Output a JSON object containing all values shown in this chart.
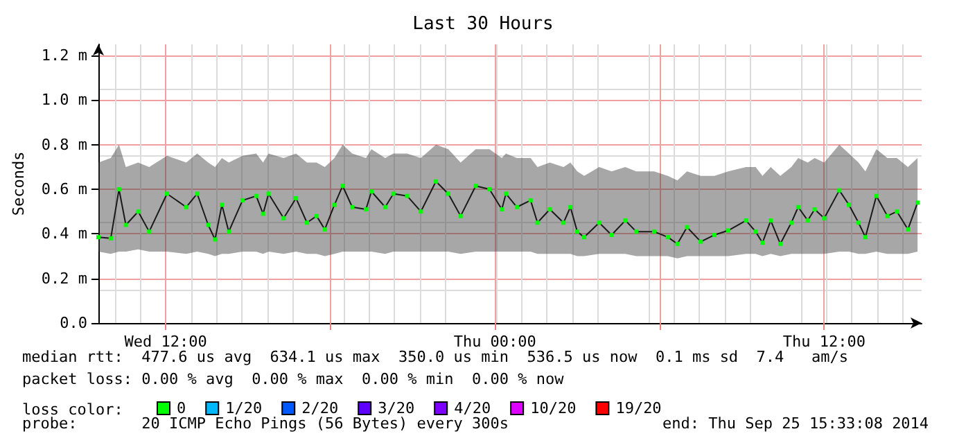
{
  "chart_data": {
    "type": "line",
    "title": "Last 30 Hours",
    "ylabel": "Seconds",
    "legend_title": "loss color:",
    "x": [
      "2014-09-24T09:33",
      "2014-09-24T10:00",
      "2014-09-24T10:18",
      "2014-09-24T10:33",
      "2014-09-24T11:00",
      "2014-09-24T11:24",
      "2014-09-24T12:03",
      "2014-09-24T12:45",
      "2014-09-24T13:09",
      "2014-09-24T13:33",
      "2014-09-24T13:48",
      "2014-09-24T14:03",
      "2014-09-24T14:18",
      "2014-09-24T14:48",
      "2014-09-24T15:18",
      "2014-09-24T15:33",
      "2014-09-24T15:45",
      "2014-09-24T16:18",
      "2014-09-24T16:45",
      "2014-09-24T17:09",
      "2014-09-24T17:30",
      "2014-09-24T17:48",
      "2014-09-24T18:09",
      "2014-09-24T18:27",
      "2014-09-24T18:48",
      "2014-09-24T19:18",
      "2014-09-24T19:30",
      "2014-09-24T20:00",
      "2014-09-24T20:18",
      "2014-09-24T20:48",
      "2014-09-24T21:18",
      "2014-09-24T21:51",
      "2014-09-24T22:18",
      "2014-09-24T22:45",
      "2014-09-24T23:18",
      "2014-09-24T23:48",
      "2014-09-25T00:15",
      "2014-09-25T00:24",
      "2014-09-25T00:48",
      "2014-09-25T01:18",
      "2014-09-25T01:33",
      "2014-09-25T02:00",
      "2014-09-25T02:30",
      "2014-09-25T02:45",
      "2014-09-25T03:00",
      "2014-09-25T03:15",
      "2014-09-25T03:48",
      "2014-09-25T04:15",
      "2014-09-25T04:45",
      "2014-09-25T05:09",
      "2014-09-25T05:48",
      "2014-09-25T06:18",
      "2014-09-25T06:39",
      "2014-09-25T07:00",
      "2014-09-25T07:30",
      "2014-09-25T08:00",
      "2014-09-25T08:30",
      "2014-09-25T09:09",
      "2014-09-25T09:30",
      "2014-09-25T09:45",
      "2014-09-25T10:03",
      "2014-09-25T10:24",
      "2014-09-25T10:48",
      "2014-09-25T11:03",
      "2014-09-25T11:24",
      "2014-09-25T11:39",
      "2014-09-25T12:00",
      "2014-09-25T12:33",
      "2014-09-25T12:54",
      "2014-09-25T13:15",
      "2014-09-25T13:30",
      "2014-09-25T13:54",
      "2014-09-25T14:18",
      "2014-09-25T14:39",
      "2014-09-25T15:03",
      "2014-09-25T15:24"
    ],
    "series": [
      {
        "name": "0",
        "color": "#00ff00",
        "values": [
          0.385,
          0.38,
          0.6,
          0.44,
          0.5,
          0.41,
          0.58,
          0.52,
          0.58,
          0.44,
          0.375,
          0.53,
          0.41,
          0.55,
          0.57,
          0.49,
          0.58,
          0.47,
          0.56,
          0.45,
          0.48,
          0.42,
          0.53,
          0.615,
          0.52,
          0.51,
          0.59,
          0.52,
          0.58,
          0.57,
          0.5,
          0.635,
          0.58,
          0.48,
          0.615,
          0.6,
          0.51,
          0.58,
          0.52,
          0.55,
          0.45,
          0.51,
          0.45,
          0.52,
          0.41,
          0.385,
          0.45,
          0.395,
          0.46,
          0.41,
          0.41,
          0.385,
          0.355,
          0.43,
          0.365,
          0.395,
          0.415,
          0.46,
          0.41,
          0.36,
          0.46,
          0.355,
          0.45,
          0.52,
          0.46,
          0.51,
          0.47,
          0.595,
          0.53,
          0.45,
          0.385,
          0.57,
          0.48,
          0.5,
          0.42,
          0.54
        ],
        "lower": [
          0.32,
          0.31,
          0.32,
          0.32,
          0.33,
          0.32,
          0.32,
          0.31,
          0.32,
          0.31,
          0.3,
          0.31,
          0.31,
          0.32,
          0.32,
          0.31,
          0.32,
          0.31,
          0.32,
          0.31,
          0.31,
          0.3,
          0.31,
          0.32,
          0.32,
          0.32,
          0.32,
          0.31,
          0.32,
          0.32,
          0.32,
          0.32,
          0.32,
          0.31,
          0.32,
          0.32,
          0.32,
          0.32,
          0.32,
          0.32,
          0.31,
          0.31,
          0.31,
          0.31,
          0.3,
          0.3,
          0.31,
          0.31,
          0.31,
          0.3,
          0.3,
          0.3,
          0.29,
          0.3,
          0.3,
          0.3,
          0.3,
          0.31,
          0.31,
          0.3,
          0.31,
          0.3,
          0.31,
          0.31,
          0.31,
          0.31,
          0.31,
          0.32,
          0.32,
          0.31,
          0.31,
          0.32,
          0.31,
          0.31,
          0.31,
          0.32
        ],
        "upper": [
          0.72,
          0.74,
          0.8,
          0.7,
          0.72,
          0.7,
          0.75,
          0.72,
          0.76,
          0.72,
          0.7,
          0.74,
          0.72,
          0.75,
          0.76,
          0.72,
          0.76,
          0.74,
          0.76,
          0.72,
          0.72,
          0.7,
          0.74,
          0.8,
          0.76,
          0.74,
          0.78,
          0.74,
          0.76,
          0.76,
          0.74,
          0.8,
          0.78,
          0.72,
          0.78,
          0.78,
          0.74,
          0.76,
          0.74,
          0.74,
          0.7,
          0.72,
          0.7,
          0.72,
          0.68,
          0.66,
          0.7,
          0.68,
          0.7,
          0.68,
          0.68,
          0.66,
          0.64,
          0.68,
          0.66,
          0.66,
          0.68,
          0.7,
          0.7,
          0.66,
          0.7,
          0.66,
          0.7,
          0.74,
          0.72,
          0.74,
          0.72,
          0.8,
          0.76,
          0.72,
          0.68,
          0.78,
          0.74,
          0.74,
          0.7,
          0.74
        ]
      },
      {
        "name": "1/20",
        "color": "#00b8ff",
        "values": [
          null,
          null,
          null,
          null,
          null,
          null,
          null,
          null,
          null,
          null,
          null,
          null,
          null,
          null,
          null,
          null,
          null,
          null,
          null,
          null,
          null,
          null,
          null,
          null,
          null,
          null,
          null,
          null,
          null,
          null,
          null,
          null,
          null,
          null,
          null,
          null,
          null,
          null,
          null,
          null,
          null,
          null,
          null,
          null,
          null,
          null,
          null,
          null,
          null,
          null,
          null,
          null,
          null,
          null,
          null,
          null,
          null,
          null,
          null,
          null,
          null,
          null,
          null,
          null,
          null,
          null,
          null,
          null,
          null,
          null,
          null,
          null,
          null,
          null,
          null,
          null
        ]
      },
      {
        "name": "2/20",
        "color": "#0059ff",
        "values": [
          null,
          null,
          null,
          null,
          null,
          null,
          null,
          null,
          null,
          null,
          null,
          null,
          null,
          null,
          null,
          null,
          null,
          null,
          null,
          null,
          null,
          null,
          null,
          null,
          null,
          null,
          null,
          null,
          null,
          null,
          null,
          null,
          null,
          null,
          null,
          null,
          null,
          null,
          null,
          null,
          null,
          null,
          null,
          null,
          null,
          null,
          null,
          null,
          null,
          null,
          null,
          null,
          null,
          null,
          null,
          null,
          null,
          null,
          null,
          null,
          null,
          null,
          null,
          null,
          null,
          null,
          null,
          null,
          null,
          null,
          null,
          null,
          null,
          null,
          null,
          null
        ]
      },
      {
        "name": "3/20",
        "color": "#5e00ff",
        "values": [
          null,
          null,
          null,
          null,
          null,
          null,
          null,
          null,
          null,
          null,
          null,
          null,
          null,
          null,
          null,
          null,
          null,
          null,
          null,
          null,
          null,
          null,
          null,
          null,
          null,
          null,
          null,
          null,
          null,
          null,
          null,
          null,
          null,
          null,
          null,
          null,
          null,
          null,
          null,
          null,
          null,
          null,
          null,
          null,
          null,
          null,
          null,
          null,
          null,
          null,
          null,
          null,
          null,
          null,
          null,
          null,
          null,
          null,
          null,
          null,
          null,
          null,
          null,
          null,
          null,
          null,
          null,
          null,
          null,
          null,
          null,
          null,
          null,
          null,
          null,
          null
        ]
      },
      {
        "name": "4/20",
        "color": "#7e00ff",
        "values": [
          null,
          null,
          null,
          null,
          null,
          null,
          null,
          null,
          null,
          null,
          null,
          null,
          null,
          null,
          null,
          null,
          null,
          null,
          null,
          null,
          null,
          null,
          null,
          null,
          null,
          null,
          null,
          null,
          null,
          null,
          null,
          null,
          null,
          null,
          null,
          null,
          null,
          null,
          null,
          null,
          null,
          null,
          null,
          null,
          null,
          null,
          null,
          null,
          null,
          null,
          null,
          null,
          null,
          null,
          null,
          null,
          null,
          null,
          null,
          null,
          null,
          null,
          null,
          null,
          null,
          null,
          null,
          null,
          null,
          null,
          null,
          null,
          null,
          null,
          null,
          null
        ]
      },
      {
        "name": "10/20",
        "color": "#dd00ff",
        "values": [
          null,
          null,
          null,
          null,
          null,
          null,
          null,
          null,
          null,
          null,
          null,
          null,
          null,
          null,
          null,
          null,
          null,
          null,
          null,
          null,
          null,
          null,
          null,
          null,
          null,
          null,
          null,
          null,
          null,
          null,
          null,
          null,
          null,
          null,
          null,
          null,
          null,
          null,
          null,
          null,
          null,
          null,
          null,
          null,
          null,
          null,
          null,
          null,
          null,
          null,
          null,
          null,
          null,
          null,
          null,
          null,
          null,
          null,
          null,
          null,
          null,
          null,
          null,
          null,
          null,
          null,
          null,
          null,
          null,
          null,
          null,
          null,
          null,
          null,
          null,
          null
        ]
      },
      {
        "name": "19/20",
        "color": "#ff0000",
        "values": [
          null,
          null,
          null,
          null,
          null,
          null,
          null,
          null,
          null,
          null,
          null,
          null,
          null,
          null,
          null,
          null,
          null,
          null,
          null,
          null,
          null,
          null,
          null,
          null,
          null,
          null,
          null,
          null,
          null,
          null,
          null,
          null,
          null,
          null,
          null,
          null,
          null,
          null,
          null,
          null,
          null,
          null,
          null,
          null,
          null,
          null,
          null,
          null,
          null,
          null,
          null,
          null,
          null,
          null,
          null,
          null,
          null,
          null,
          null,
          null,
          null,
          null,
          null,
          null,
          null,
          null,
          null,
          null,
          null,
          null,
          null,
          null,
          null,
          null,
          null,
          null
        ]
      }
    ],
    "xlim": [
      "2014-09-24T09:33",
      "2014-09-25T15:33"
    ],
    "xticks": [
      {
        "value": "2014-09-24T12:00",
        "label": "Wed 12:00"
      },
      {
        "value": "2014-09-24T18:00",
        "label": null
      },
      {
        "value": "2014-09-25T00:00",
        "label": "Thu 00:00"
      },
      {
        "value": "2014-09-25T06:00",
        "label": null
      },
      {
        "value": "2014-09-25T12:00",
        "label": "Thu 12:00"
      }
    ],
    "ylim": [
      0,
      1.25
    ],
    "yticks": [
      {
        "value": 0,
        "label": "0.0"
      },
      {
        "value": 0.2,
        "label": "0.2 m"
      },
      {
        "value": 0.4,
        "label": "0.4 m"
      },
      {
        "value": 0.6,
        "label": "0.6 m"
      },
      {
        "value": 0.8,
        "label": "0.8 m"
      },
      {
        "value": 1.0,
        "label": "1.0 m"
      },
      {
        "value": 1.2,
        "label": "1.2 m"
      }
    ],
    "grid": true,
    "legend": "bottom left",
    "marker": "square",
    "line_style": "solid",
    "annotations": [
      "median rtt:  477.6 us avg  634.1 us max  350.0 us min  536.5 us now  0.1 ms sd  7.4   am/s",
      "packet loss: 0.00 % avg  0.00 % max  0.00 % min  0.00 % now",
      "probe:       20 ICMP Echo Pings (56 Bytes) every 300s",
      "end: Thu Sep 25 15:33:08 2014"
    ]
  }
}
